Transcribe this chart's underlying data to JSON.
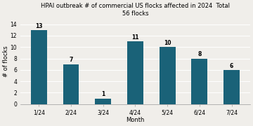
{
  "title_line1": "HPAI outbreak # of commercial US flocks affected in 2024  Total",
  "title_line2": "56 flocks",
  "categories": [
    "1/24",
    "2/24",
    "3/24",
    "4/24",
    "5/24",
    "6/24",
    "7/24"
  ],
  "values": [
    13,
    7,
    1,
    11,
    10,
    8,
    6
  ],
  "bar_color": "#1a6278",
  "xlabel": "Month",
  "ylabel": "# of flocks",
  "ylim": [
    0,
    15
  ],
  "yticks": [
    0,
    2,
    4,
    6,
    8,
    10,
    12,
    14
  ],
  "background_color": "#f0eeea",
  "title_fontsize": 6.0,
  "axis_label_fontsize": 6.0,
  "tick_fontsize": 5.5,
  "bar_label_fontsize": 5.5,
  "bar_width": 0.5
}
